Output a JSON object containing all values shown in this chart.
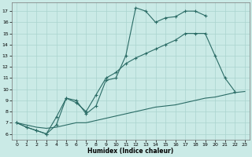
{
  "xlabel": "Humidex (Indice chaleur)",
  "bg_color": "#caeae6",
  "grid_color": "#aad4cf",
  "line_color": "#2a6b65",
  "line1_x": [
    0,
    1,
    2,
    3,
    4,
    5,
    6,
    7,
    8,
    9,
    10,
    11,
    12,
    13,
    14,
    15,
    16,
    17,
    18,
    19
  ],
  "line1_y": [
    7.0,
    6.6,
    6.3,
    6.0,
    6.8,
    9.2,
    9.0,
    7.8,
    8.5,
    10.8,
    11.0,
    13.0,
    17.3,
    17.0,
    16.0,
    16.4,
    16.5,
    17.0,
    17.0,
    16.6
  ],
  "line2_x": [
    0,
    1,
    2,
    3,
    4,
    5,
    6,
    7,
    8,
    9,
    10,
    11,
    12,
    13,
    14,
    15,
    16,
    17,
    18,
    19,
    20,
    21,
    22
  ],
  "line2_y": [
    7.0,
    6.6,
    6.3,
    6.0,
    7.5,
    9.2,
    8.8,
    8.0,
    9.5,
    11.0,
    11.5,
    12.3,
    12.8,
    13.2,
    13.6,
    14.0,
    14.4,
    15.0,
    15.0,
    15.0,
    13.0,
    11.0,
    9.8
  ],
  "line3_x": [
    0,
    1,
    2,
    3,
    4,
    5,
    6,
    7,
    8,
    9,
    10,
    11,
    12,
    13,
    14,
    15,
    16,
    17,
    18,
    19,
    20,
    21,
    22,
    23
  ],
  "line3_y": [
    7.0,
    6.8,
    6.6,
    6.5,
    6.6,
    6.8,
    7.0,
    7.0,
    7.2,
    7.4,
    7.6,
    7.8,
    8.0,
    8.2,
    8.4,
    8.5,
    8.6,
    8.8,
    9.0,
    9.2,
    9.3,
    9.5,
    9.7,
    9.8
  ],
  "xlim": [
    -0.5,
    23.5
  ],
  "ylim": [
    5.5,
    17.8
  ],
  "yticks": [
    6,
    7,
    8,
    9,
    10,
    11,
    12,
    13,
    14,
    15,
    16,
    17
  ],
  "xticks": [
    0,
    1,
    2,
    3,
    4,
    5,
    6,
    7,
    8,
    9,
    10,
    11,
    12,
    13,
    14,
    15,
    16,
    17,
    18,
    19,
    20,
    21,
    22,
    23
  ]
}
